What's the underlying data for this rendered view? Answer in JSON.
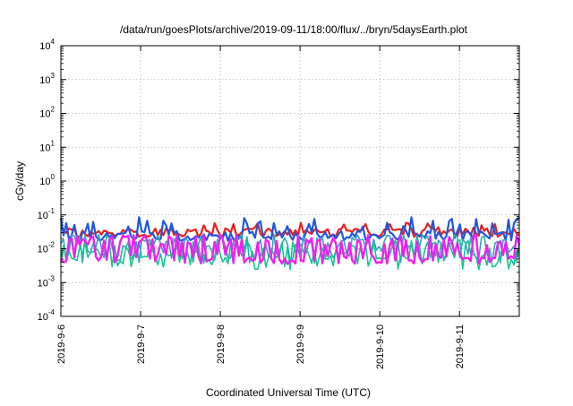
{
  "chart_data": {
    "type": "line",
    "title": "/data/run/goesPlots/archive/2019-09-11/18:00/flux/../bryn/5daysEarth.plot",
    "xlabel": "Coordinated Universal Time (UTC)",
    "ylabel": "cGy/day",
    "y_scale": "log",
    "ylim": [
      0.0001,
      10000
    ],
    "y_ticks": [
      {
        "base": "10",
        "exp": "4",
        "value": 10000
      },
      {
        "base": "10",
        "exp": "3",
        "value": 1000
      },
      {
        "base": "10",
        "exp": "2",
        "value": 100
      },
      {
        "base": "10",
        "exp": "1",
        "value": 10
      },
      {
        "base": "10",
        "exp": "0",
        "value": 1
      },
      {
        "base": "10",
        "exp": "-1",
        "value": 0.1
      },
      {
        "base": "10",
        "exp": "-2",
        "value": 0.01
      },
      {
        "base": "10",
        "exp": "-3",
        "value": 0.001
      },
      {
        "base": "10",
        "exp": "-4",
        "value": 0.0001
      }
    ],
    "xlim": [
      "2019-09-06T00:00",
      "2019-09-11T18:00"
    ],
    "x_ticks": [
      {
        "label": "2019-9-6",
        "date": "2019-09-06"
      },
      {
        "label": "2019-9-7",
        "date": "2019-09-07"
      },
      {
        "label": "2019-9-8",
        "date": "2019-09-08"
      },
      {
        "label": "2019-9-9",
        "date": "2019-09-09"
      },
      {
        "label": "2019-9-10",
        "date": "2019-09-10"
      },
      {
        "label": "2019-9-11",
        "date": "2019-09-11"
      }
    ],
    "grid": true,
    "series": [
      {
        "color": "#e8201a",
        "base": 0.03,
        "spread": 0.25,
        "spike_chance": 0.15,
        "spike_factor": 1.5,
        "width": 2.2
      },
      {
        "color": "#1f57e0",
        "base": 0.024,
        "spread": 0.3,
        "spike_chance": 0.18,
        "spike_factor": 2.6,
        "width": 2.2
      },
      {
        "color": "#30a8b8",
        "base": 0.017,
        "spread": 0.4,
        "spike_chance": 0.4,
        "spike_factor": 0.35,
        "width": 1.6
      },
      {
        "color": "#12c890",
        "base": 0.01,
        "spread": 0.55,
        "spike_chance": 0.45,
        "spike_factor": 0.45,
        "width": 1.6
      },
      {
        "color": "#f020f0",
        "base": 0.005,
        "spread": 0.3,
        "spike_chance": 0.45,
        "spike_factor": 3.6,
        "width": 2.4
      }
    ]
  }
}
